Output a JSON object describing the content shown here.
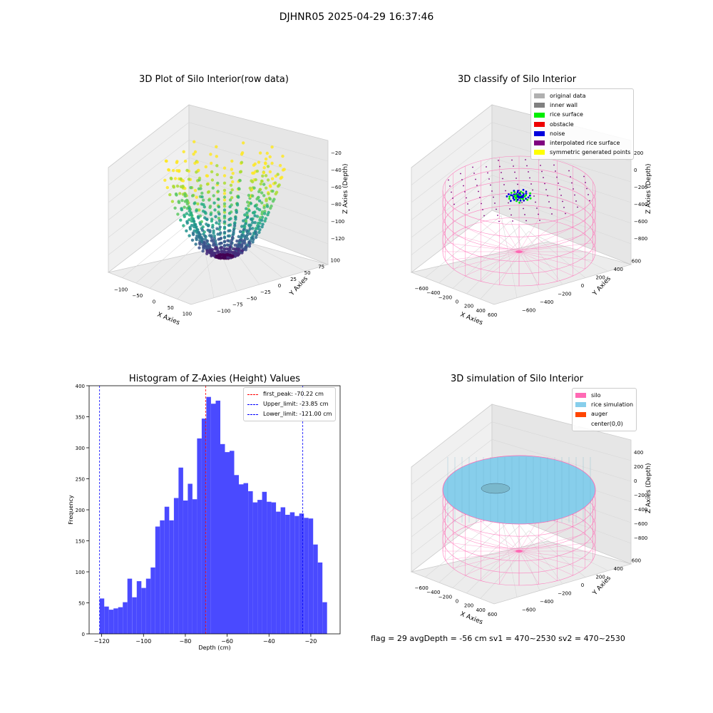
{
  "figure": {
    "suptitle": "DJHNR05 2025-04-29 16:37:46",
    "status_text": "flag = 29  avgDepth = -56 cm   sv1 = 470~2530  sv2 = 470~2530"
  },
  "panels": {
    "raw": {
      "title": "3D Plot of Silo Interior(row data)",
      "xlabel": "X Axies",
      "ylabel": "Y Axies",
      "zlabel": "Z Axies (Depth)",
      "xticks": [
        "−100",
        "−50",
        "0",
        "50",
        "100"
      ],
      "yticks": [
        "−100",
        "−75",
        "−50",
        "−25",
        "0",
        "25",
        "50",
        "75",
        "100"
      ],
      "zticks": [
        "−20",
        "−40",
        "−60",
        "−80",
        "−100",
        "−120"
      ],
      "colormap": "viridis"
    },
    "classify": {
      "title": "3D classify of Silo Interior",
      "xlabel": "X Axies",
      "ylabel": "Y Axies",
      "zlabel": "Z Axies (Depth)",
      "xticks": [
        "−600",
        "−400",
        "−200",
        "0",
        "200",
        "400",
        "600"
      ],
      "yticks": [
        "−600",
        "−400",
        "−200",
        "0",
        "200",
        "400",
        "600"
      ],
      "zticks": [
        "200",
        "0",
        "−200",
        "−400",
        "−600",
        "−800"
      ],
      "legend": [
        {
          "label": "original data",
          "color": "#b0b0b0"
        },
        {
          "label": "inner wall",
          "color": "#808080"
        },
        {
          "label": "rice surface",
          "color": "#00ee00"
        },
        {
          "label": "obstacle",
          "color": "#ee0000"
        },
        {
          "label": "noise",
          "color": "#0000dd"
        },
        {
          "label": "interpolated rice surface",
          "color": "#800080"
        },
        {
          "label": "symmetric generated points",
          "color": "#ffff00"
        }
      ]
    },
    "hist": {
      "title": "Histogram of Z-Axies (Height) Values",
      "xlabel": "Depth (cm)",
      "ylabel": "Frequency",
      "xticks": [
        "−120",
        "−100",
        "−80",
        "−60",
        "−40",
        "−20"
      ],
      "yticks": [
        "0",
        "50",
        "100",
        "150",
        "200",
        "250",
        "300",
        "350",
        "400"
      ],
      "legend": [
        {
          "label": "first_peak: -70.22 cm",
          "color": "#ff0000"
        },
        {
          "label": "Upper_limit: -23.85 cm",
          "color": "#0000ff"
        },
        {
          "label": "Lower_limit: -121.00 cm",
          "color": "#0000ff"
        }
      ]
    },
    "sim": {
      "title": "3D simulation of Silo Interior",
      "xlabel": "X Axies",
      "ylabel": "Y Axies",
      "zlabel": "Z Axies (Depth)",
      "xticks": [
        "−600",
        "−400",
        "−200",
        "0",
        "200",
        "400",
        "600"
      ],
      "yticks": [
        "−600",
        "−400",
        "−200",
        "0",
        "200",
        "400",
        "600"
      ],
      "zticks": [
        "400",
        "200",
        "0",
        "−200",
        "−400",
        "−600",
        "−800"
      ],
      "legend": [
        {
          "label": "silo",
          "color": "#ff69b4"
        },
        {
          "label": "rice simulation",
          "color": "#87ceeb"
        },
        {
          "label": "auger",
          "color": "#ff4500"
        },
        {
          "label": "center(0,0)",
          "color": "#ffffff"
        }
      ]
    }
  },
  "chart_data": [
    {
      "type": "scatter",
      "title": "3D Plot of Silo Interior(row data)",
      "xlabel": "X Axies",
      "ylabel": "Y Axies",
      "zlabel": "Z Axies (Depth)",
      "xlim": [
        -125,
        125
      ],
      "ylim": [
        -110,
        110
      ],
      "zlim": [
        -130,
        -15
      ],
      "colormap": "viridis"
    },
    {
      "type": "scatter",
      "title": "3D classify of Silo Interior",
      "xlabel": "X Axies",
      "ylabel": "Y Axies",
      "zlabel": "Z Axies (Depth)",
      "xlim": [
        -650,
        650
      ],
      "ylim": [
        -650,
        650
      ],
      "zlim": [
        -900,
        300
      ]
    },
    {
      "type": "bar",
      "title": "Histogram of Z-Axies (Height) Values",
      "xlabel": "Depth (cm)",
      "ylabel": "Frequency",
      "xlim": [
        -126,
        -6
      ],
      "ylim": [
        0,
        400
      ],
      "bin_start": -121.0,
      "bin_width": 2.22,
      "values": [
        57,
        44,
        39,
        41,
        43,
        51,
        89,
        59,
        85,
        74,
        89,
        107,
        173,
        183,
        205,
        183,
        219,
        268,
        215,
        242,
        217,
        315,
        347,
        382,
        371,
        376,
        306,
        293,
        295,
        256,
        241,
        243,
        230,
        212,
        216,
        229,
        213,
        212,
        197,
        204,
        192,
        196,
        190,
        194,
        187,
        186,
        144,
        115,
        51
      ],
      "vlines": [
        {
          "x": -70.22,
          "label": "first_peak: -70.22 cm",
          "color": "#ff0000"
        },
        {
          "x": -23.85,
          "label": "Upper_limit: -23.85 cm",
          "color": "#0000ff"
        },
        {
          "x": -121.0,
          "label": "Lower_limit: -121.00 cm",
          "color": "#0000ff"
        }
      ],
      "bar_color": "#4a4aff"
    },
    {
      "type": "scatter",
      "title": "3D simulation of Silo Interior",
      "xlabel": "X Axies",
      "ylabel": "Y Axies",
      "zlabel": "Z Axies (Depth)",
      "xlim": [
        -650,
        650
      ],
      "ylim": [
        -650,
        650
      ],
      "zlim": [
        -900,
        500
      ]
    }
  ]
}
